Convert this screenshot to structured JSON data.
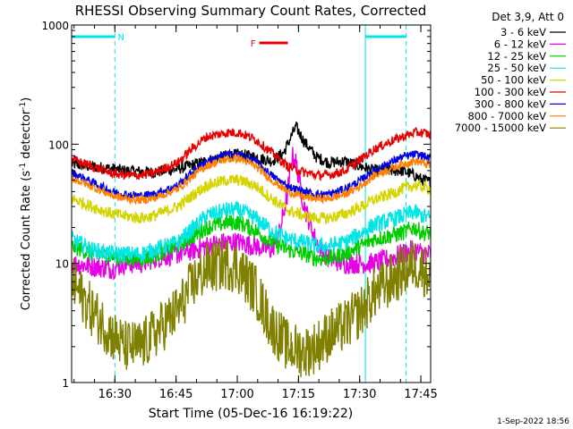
{
  "chart_data": {
    "type": "line",
    "title": "RHESSI Observing Summary Count Rates, Corrected",
    "xlabel": "Start Time (05-Dec-16 16:19:22)",
    "ylabel_main": "Corrected Count Rate (s",
    "ylabel_sup1": "-1",
    "ylabel_mid": " detector",
    "ylabel_sup2": "-1",
    "ylabel_end": ")",
    "yscale": "log",
    "ylim": [
      1,
      1000
    ],
    "y_ticks": [
      {
        "value": 1,
        "label": "1"
      },
      {
        "value": 10,
        "label": "10"
      },
      {
        "value": 100,
        "label": "100"
      },
      {
        "value": 1000,
        "label": "1000"
      }
    ],
    "x_units": "minutes after 16:19:22",
    "xlim": [
      0,
      88
    ],
    "x_ticks": [
      {
        "value": 10.6,
        "label": "16:30"
      },
      {
        "value": 25.6,
        "label": "16:45"
      },
      {
        "value": 40.6,
        "label": "17:00"
      },
      {
        "value": 55.6,
        "label": "17:15"
      },
      {
        "value": 70.6,
        "label": "17:30"
      },
      {
        "value": 85.6,
        "label": "17:45"
      }
    ],
    "legend_header": "Det 3,9, Att 0",
    "timestamp": "1-Sep-2022 18:56",
    "flags": [
      {
        "label": "N",
        "x_start": 0,
        "x_end": 10.6,
        "color": "#00e5e5"
      },
      {
        "label": "F",
        "x_start": 46,
        "x_end": 53,
        "color": "#e60000"
      },
      {
        "label": "",
        "x_start": 72,
        "x_end": 82,
        "color": "#00e5e5"
      }
    ],
    "vlines": [
      {
        "x": 0,
        "style": "solid",
        "color": "#00e5e5"
      },
      {
        "x": 10.6,
        "style": "dashed",
        "color": "#00e5e5"
      },
      {
        "x": 72,
        "style": "solid",
        "color": "#00e5e5"
      },
      {
        "x": 82,
        "style": "dashed",
        "color": "#00e5e5"
      }
    ],
    "series": [
      {
        "name": "3 - 6 keV",
        "color": "#000000",
        "points": [
          [
            0,
            68
          ],
          [
            5,
            65
          ],
          [
            10,
            62
          ],
          [
            13,
            60
          ],
          [
            20,
            58
          ],
          [
            26,
            62
          ],
          [
            33,
            72
          ],
          [
            38,
            80
          ],
          [
            41,
            82
          ],
          [
            45,
            78
          ],
          [
            49,
            72
          ],
          [
            52,
            85
          ],
          [
            54,
            120
          ],
          [
            55,
            140
          ],
          [
            57,
            105
          ],
          [
            60,
            78
          ],
          [
            63,
            70
          ],
          [
            67,
            72
          ],
          [
            71,
            65
          ],
          [
            74,
            60
          ],
          [
            78,
            60
          ],
          [
            81,
            60
          ],
          [
            84,
            55
          ],
          [
            86,
            50
          ],
          [
            88,
            48
          ]
        ]
      },
      {
        "name": "6 - 12 keV",
        "color": "#e600e6",
        "points": [
          [
            0,
            10
          ],
          [
            5,
            9.5
          ],
          [
            10,
            9
          ],
          [
            13,
            10
          ],
          [
            17,
            10
          ],
          [
            20,
            11
          ],
          [
            26,
            12
          ],
          [
            30,
            13
          ],
          [
            33,
            14
          ],
          [
            38,
            15
          ],
          [
            41,
            15
          ],
          [
            45,
            14
          ],
          [
            49,
            13
          ],
          [
            51,
            18
          ],
          [
            53,
            40
          ],
          [
            54,
            80
          ],
          [
            55,
            70
          ],
          [
            57,
            30
          ],
          [
            60,
            15
          ],
          [
            63,
            11
          ],
          [
            67,
            10
          ],
          [
            71,
            10
          ],
          [
            74,
            10
          ],
          [
            78,
            11
          ],
          [
            81,
            12
          ],
          [
            84,
            13
          ],
          [
            86,
            12
          ],
          [
            88,
            12
          ]
        ]
      },
      {
        "name": "12 - 25 keV",
        "color": "#00cc00",
        "points": [
          [
            0,
            14
          ],
          [
            5,
            12
          ],
          [
            10,
            11.5
          ],
          [
            13,
            11
          ],
          [
            17,
            11
          ],
          [
            20,
            11.5
          ],
          [
            26,
            14
          ],
          [
            30,
            17
          ],
          [
            33,
            20
          ],
          [
            38,
            22
          ],
          [
            41,
            22
          ],
          [
            45,
            19
          ],
          [
            49,
            15
          ],
          [
            53,
            13
          ],
          [
            57,
            12
          ],
          [
            60,
            11
          ],
          [
            63,
            11
          ],
          [
            67,
            12
          ],
          [
            71,
            14
          ],
          [
            74,
            16
          ],
          [
            78,
            17
          ],
          [
            81,
            18
          ],
          [
            84,
            20
          ],
          [
            86,
            18
          ],
          [
            88,
            18
          ]
        ]
      },
      {
        "name": "25 - 50 keV",
        "color": "#00e5e5",
        "points": [
          [
            0,
            16
          ],
          [
            5,
            13
          ],
          [
            10,
            12
          ],
          [
            13,
            12
          ],
          [
            17,
            12
          ],
          [
            20,
            13
          ],
          [
            26,
            15
          ],
          [
            30,
            20
          ],
          [
            33,
            25
          ],
          [
            38,
            28
          ],
          [
            41,
            28
          ],
          [
            45,
            24
          ],
          [
            49,
            19
          ],
          [
            53,
            16
          ],
          [
            57,
            15
          ],
          [
            60,
            14
          ],
          [
            63,
            14
          ],
          [
            67,
            15
          ],
          [
            71,
            18
          ],
          [
            74,
            21
          ],
          [
            78,
            23
          ],
          [
            81,
            25
          ],
          [
            84,
            27
          ],
          [
            86,
            25
          ],
          [
            88,
            24
          ]
        ]
      },
      {
        "name": "50 - 100 keV",
        "color": "#d4d400",
        "points": [
          [
            0,
            35
          ],
          [
            5,
            30
          ],
          [
            10,
            26
          ],
          [
            13,
            25
          ],
          [
            17,
            24
          ],
          [
            20,
            25
          ],
          [
            26,
            30
          ],
          [
            30,
            38
          ],
          [
            33,
            45
          ],
          [
            38,
            50
          ],
          [
            41,
            50
          ],
          [
            45,
            45
          ],
          [
            49,
            35
          ],
          [
            53,
            28
          ],
          [
            57,
            25
          ],
          [
            60,
            24
          ],
          [
            63,
            24
          ],
          [
            67,
            26
          ],
          [
            71,
            30
          ],
          [
            74,
            34
          ],
          [
            78,
            38
          ],
          [
            81,
            42
          ],
          [
            84,
            45
          ],
          [
            86,
            44
          ],
          [
            88,
            42
          ]
        ]
      },
      {
        "name": "100 - 300 keV",
        "color": "#e60000",
        "points": [
          [
            0,
            75
          ],
          [
            5,
            65
          ],
          [
            10,
            57
          ],
          [
            13,
            55
          ],
          [
            17,
            55
          ],
          [
            20,
            57
          ],
          [
            26,
            70
          ],
          [
            30,
            95
          ],
          [
            33,
            115
          ],
          [
            38,
            125
          ],
          [
            41,
            125
          ],
          [
            45,
            110
          ],
          [
            49,
            85
          ],
          [
            53,
            65
          ],
          [
            57,
            58
          ],
          [
            60,
            55
          ],
          [
            63,
            55
          ],
          [
            67,
            60
          ],
          [
            71,
            75
          ],
          [
            74,
            90
          ],
          [
            78,
            105
          ],
          [
            81,
            115
          ],
          [
            84,
            125
          ],
          [
            86,
            125
          ],
          [
            88,
            120
          ]
        ]
      },
      {
        "name": "300 - 800 keV",
        "color": "#0000e6",
        "points": [
          [
            0,
            58
          ],
          [
            5,
            48
          ],
          [
            10,
            40
          ],
          [
            13,
            38
          ],
          [
            17,
            37
          ],
          [
            20,
            38
          ],
          [
            26,
            45
          ],
          [
            30,
            60
          ],
          [
            33,
            72
          ],
          [
            38,
            82
          ],
          [
            41,
            82
          ],
          [
            45,
            72
          ],
          [
            49,
            55
          ],
          [
            53,
            44
          ],
          [
            57,
            40
          ],
          [
            60,
            38
          ],
          [
            63,
            38
          ],
          [
            67,
            42
          ],
          [
            71,
            50
          ],
          [
            74,
            60
          ],
          [
            78,
            70
          ],
          [
            81,
            78
          ],
          [
            84,
            82
          ],
          [
            86,
            80
          ],
          [
            88,
            75
          ]
        ]
      },
      {
        "name": "800 - 7000 keV",
        "color": "#ff8000",
        "points": [
          [
            0,
            52
          ],
          [
            5,
            44
          ],
          [
            10,
            37
          ],
          [
            13,
            35
          ],
          [
            17,
            34
          ],
          [
            20,
            35
          ],
          [
            26,
            42
          ],
          [
            30,
            55
          ],
          [
            33,
            66
          ],
          [
            38,
            75
          ],
          [
            41,
            76
          ],
          [
            45,
            66
          ],
          [
            49,
            50
          ],
          [
            53,
            40
          ],
          [
            57,
            36
          ],
          [
            60,
            35
          ],
          [
            63,
            35
          ],
          [
            67,
            38
          ],
          [
            71,
            45
          ],
          [
            74,
            54
          ],
          [
            78,
            62
          ],
          [
            81,
            68
          ],
          [
            84,
            72
          ],
          [
            86,
            70
          ],
          [
            88,
            66
          ]
        ]
      },
      {
        "name": "7000 - 15000 keV",
        "color": "#808000",
        "points": [
          [
            0,
            7
          ],
          [
            5,
            4
          ],
          [
            10,
            2.5
          ],
          [
            13,
            2
          ],
          [
            17,
            2
          ],
          [
            20,
            2.5
          ],
          [
            26,
            4
          ],
          [
            30,
            7
          ],
          [
            33,
            9
          ],
          [
            38,
            10
          ],
          [
            41,
            9
          ],
          [
            45,
            6
          ],
          [
            49,
            3
          ],
          [
            53,
            2
          ],
          [
            57,
            1.8
          ],
          [
            60,
            2
          ],
          [
            63,
            2.5
          ],
          [
            67,
            3
          ],
          [
            71,
            4
          ],
          [
            74,
            5.5
          ],
          [
            78,
            7
          ],
          [
            81,
            8.5
          ],
          [
            84,
            10
          ],
          [
            86,
            9
          ],
          [
            88,
            8
          ]
        ]
      }
    ]
  }
}
